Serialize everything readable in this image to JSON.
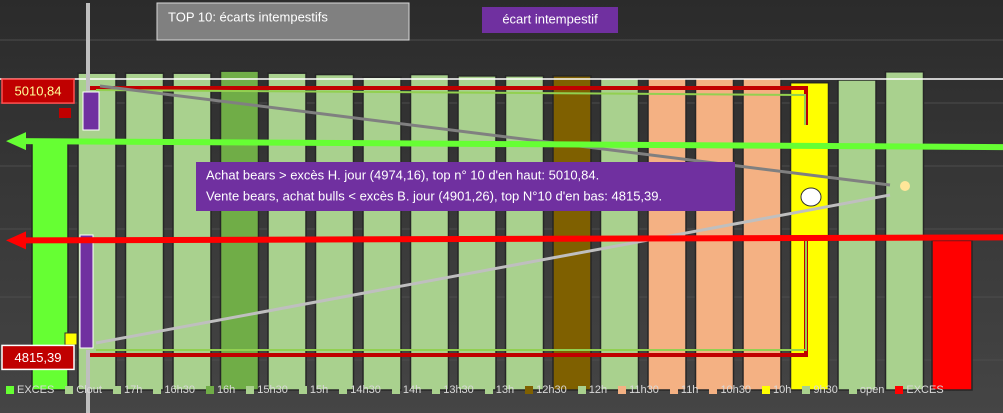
{
  "chart_data": {
    "type": "bar",
    "title": "TOP 10: écarts intempestifs",
    "subtitle": "écart intempestif",
    "annotation_lines": [
      "Achat bears > excès H. jour (4974,16), top n° 10 d'en haut: 5010,84.",
      "Vente bears, achat bulls < excès B. jour (4901,26), top N°10 d'en bas: 4815,39."
    ],
    "markers": [
      {
        "value": 5010.84,
        "label": "5010,84"
      },
      {
        "value": 4815.39,
        "label": "4815,39"
      }
    ],
    "ylim": [
      4790,
      5030
    ],
    "series": [
      {
        "name": "EXCES",
        "color": "#66ff33",
        "values": [
          4974.16
        ]
      },
      {
        "name": "Clout",
        "color": "#a9d18e",
        "values": [
          5024
        ]
      },
      {
        "name": "17h",
        "color": "#a9d18e",
        "values": [
          5024
        ]
      },
      {
        "name": "16h30",
        "color": "#a9d18e",
        "values": [
          5024
        ]
      },
      {
        "name": "16h",
        "color": "#70ad47",
        "values": [
          5025.5
        ]
      },
      {
        "name": "15h30",
        "color": "#a9d18e",
        "values": [
          5024
        ]
      },
      {
        "name": "15h",
        "color": "#a9d18e",
        "values": [
          5023
        ]
      },
      {
        "name": "14h30",
        "color": "#a9d18e",
        "values": [
          5021
        ]
      },
      {
        "name": "14h",
        "color": "#a9d18e",
        "values": [
          5023
        ]
      },
      {
        "name": "13h30",
        "color": "#a9d18e",
        "values": [
          5022
        ]
      },
      {
        "name": "13h",
        "color": "#a9d18e",
        "values": [
          5022
        ]
      },
      {
        "name": "12h30",
        "color": "#7f6000",
        "values": [
          5022
        ]
      },
      {
        "name": "12h",
        "color": "#a9d18e",
        "values": [
          5020
        ]
      },
      {
        "name": "11h30",
        "color": "#f4b183",
        "values": [
          5020
        ]
      },
      {
        "name": "11h",
        "color": "#f4b183",
        "values": [
          5020
        ]
      },
      {
        "name": "10h30",
        "color": "#f4b183",
        "values": [
          5020
        ]
      },
      {
        "name": "10h",
        "color": "#ffff00",
        "values": [
          5017
        ]
      },
      {
        "name": "9h30",
        "color": "#a9d18e",
        "values": [
          5019
        ]
      },
      {
        "name": "open",
        "color": "#a9d18e",
        "values": [
          5025
        ]
      },
      {
        "name": "EXCES",
        "color": "#ff0000",
        "values": [
          4901.26
        ]
      }
    ]
  }
}
